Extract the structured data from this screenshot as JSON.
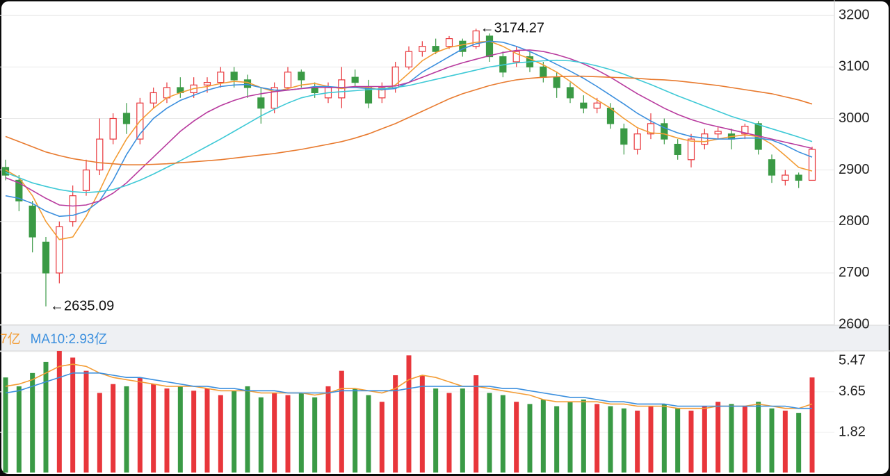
{
  "chart_data": {
    "type": "candlestick",
    "open": [
      2905,
      2880,
      2830,
      2760,
      2700,
      2800,
      2860,
      2900,
      2960,
      3010,
      2960,
      3030,
      3040,
      3060,
      3050,
      3065,
      3070,
      3090,
      3075,
      3040,
      3020,
      3060,
      3090,
      3060,
      3040,
      3040,
      3080,
      3060,
      3040,
      3060,
      3100,
      3130,
      3140,
      3140,
      3150,
      3140,
      3160,
      3120,
      3110,
      3120,
      3100,
      3080,
      3060,
      3030,
      3020,
      3020,
      2980,
      2940,
      2970,
      2990,
      2950,
      2920,
      2950,
      2970,
      2970,
      2970,
      2990,
      2920,
      2880,
      2890,
      2880
    ],
    "high": [
      2920,
      2890,
      2840,
      2770,
      2800,
      2870,
      2920,
      3000,
      3010,
      3030,
      3040,
      3060,
      3070,
      3080,
      3080,
      3080,
      3100,
      3100,
      3085,
      3060,
      3070,
      3100,
      3095,
      3070,
      3070,
      3100,
      3095,
      3075,
      3070,
      3110,
      3140,
      3150,
      3155,
      3160,
      3155,
      3174.27,
      3165,
      3130,
      3140,
      3130,
      3110,
      3090,
      3070,
      3045,
      3040,
      3030,
      2990,
      2980,
      3010,
      3000,
      2960,
      2970,
      2980,
      2985,
      2980,
      2990,
      2995,
      2930,
      2900,
      2895,
      2945
    ],
    "low": [
      2880,
      2820,
      2740,
      2635.09,
      2680,
      2790,
      2850,
      2890,
      2950,
      2970,
      2950,
      3020,
      3030,
      3040,
      3040,
      3050,
      3060,
      3060,
      3040,
      2990,
      3010,
      3055,
      3060,
      3040,
      3030,
      3020,
      3060,
      3020,
      3030,
      3050,
      3095,
      3120,
      3125,
      3135,
      3120,
      3135,
      3110,
      3080,
      3100,
      3090,
      3070,
      3040,
      3030,
      3010,
      3010,
      2980,
      2930,
      2930,
      2960,
      2950,
      2920,
      2905,
      2940,
      2960,
      2940,
      2960,
      2930,
      2875,
      2870,
      2865,
      2880
    ],
    "close": [
      2890,
      2840,
      2770,
      2700,
      2790,
      2850,
      2900,
      2960,
      3000,
      2990,
      3030,
      3050,
      3060,
      3050,
      3065,
      3070,
      3090,
      3075,
      3060,
      3020,
      3060,
      3090,
      3075,
      3050,
      3060,
      3075,
      3070,
      3030,
      3060,
      3100,
      3130,
      3140,
      3130,
      3155,
      3130,
      3170,
      3120,
      3090,
      3130,
      3100,
      3080,
      3060,
      3040,
      3020,
      3030,
      2990,
      2950,
      2970,
      2990,
      2960,
      2930,
      2960,
      2970,
      2975,
      2960,
      2985,
      2940,
      2890,
      2890,
      2880,
      2940
    ],
    "up_color": "#e8363b",
    "down_color": "#3a9a45",
    "ma": [
      {
        "color": "#f39c34",
        "values": [
          2900,
          2885,
          2850,
          2800,
          2765,
          2770,
          2810,
          2860,
          2915,
          2960,
          2995,
          3020,
          3040,
          3050,
          3058,
          3062,
          3068,
          3072,
          3070,
          3060,
          3052,
          3058,
          3065,
          3068,
          3062,
          3058,
          3062,
          3060,
          3055,
          3065,
          3088,
          3112,
          3128,
          3138,
          3143,
          3148,
          3150,
          3140,
          3126,
          3116,
          3104,
          3090,
          3072,
          3052,
          3036,
          3020,
          3000,
          2982,
          2972,
          2970,
          2962,
          2956,
          2955,
          2960,
          2965,
          2968,
          2965,
          2950,
          2928,
          2905,
          2898
        ]
      },
      {
        "color": "#3b8fde",
        "values": [
          2850,
          2845,
          2835,
          2820,
          2810,
          2812,
          2820,
          2840,
          2880,
          2930,
          2970,
          3000,
          3020,
          3035,
          3045,
          3055,
          3062,
          3065,
          3066,
          3060,
          3055,
          3055,
          3058,
          3062,
          3062,
          3060,
          3060,
          3058,
          3056,
          3058,
          3070,
          3090,
          3105,
          3120,
          3135,
          3145,
          3150,
          3148,
          3140,
          3130,
          3118,
          3105,
          3092,
          3078,
          3062,
          3045,
          3028,
          3010,
          2995,
          2982,
          2972,
          2965,
          2962,
          2960,
          2960,
          2962,
          2962,
          2958,
          2948,
          2935,
          2925
        ]
      },
      {
        "color": "#b83a9e",
        "values": [
          2885,
          2875,
          2860,
          2845,
          2832,
          2830,
          2832,
          2840,
          2855,
          2875,
          2900,
          2925,
          2950,
          2975,
          2995,
          3012,
          3025,
          3035,
          3043,
          3048,
          3052,
          3055,
          3058,
          3060,
          3060,
          3060,
          3062,
          3062,
          3062,
          3063,
          3070,
          3080,
          3090,
          3100,
          3108,
          3115,
          3122,
          3128,
          3132,
          3133,
          3130,
          3124,
          3116,
          3106,
          3094,
          3080,
          3064,
          3048,
          3034,
          3020,
          3008,
          2998,
          2990,
          2984,
          2978,
          2972,
          2966,
          2960,
          2954,
          2948,
          2942
        ]
      },
      {
        "color": "#3ec9d6",
        "values": [
          2895,
          2885,
          2875,
          2868,
          2862,
          2858,
          2856,
          2858,
          2862,
          2870,
          2880,
          2892,
          2905,
          2918,
          2932,
          2946,
          2960,
          2975,
          2990,
          3005,
          3018,
          3030,
          3040,
          3046,
          3050,
          3052,
          3054,
          3056,
          3058,
          3060,
          3064,
          3070,
          3076,
          3082,
          3088,
          3094,
          3100,
          3104,
          3108,
          3110,
          3112,
          3113,
          3112,
          3108,
          3102,
          3095,
          3086,
          3076,
          3066,
          3055,
          3044,
          3034,
          3024,
          3014,
          3004,
          2996,
          2988,
          2980,
          2972,
          2964,
          2955
        ]
      },
      {
        "color": "#e87a2e",
        "values": [
          2965,
          2955,
          2945,
          2935,
          2928,
          2922,
          2918,
          2914,
          2912,
          2910,
          2910,
          2911,
          2912,
          2914,
          2916,
          2918,
          2920,
          2923,
          2926,
          2929,
          2932,
          2936,
          2940,
          2945,
          2950,
          2955,
          2962,
          2970,
          2980,
          2990,
          3002,
          3014,
          3026,
          3038,
          3048,
          3056,
          3064,
          3070,
          3075,
          3078,
          3080,
          3081,
          3082,
          3082,
          3081,
          3080,
          3079,
          3078,
          3076,
          3075,
          3073,
          3070,
          3067,
          3064,
          3060,
          3056,
          3052,
          3048,
          3042,
          3036,
          3028
        ]
      }
    ],
    "ylim": [
      2600,
      3230
    ],
    "yticks": [
      2600,
      2700,
      2800,
      2900,
      3000,
      3100,
      3200
    ],
    "grid": true,
    "annotations": {
      "max": "←3174.27",
      "min": "←2635.09"
    },
    "volume": {
      "values": [
        4.3,
        3.9,
        4.5,
        5.0,
        5.5,
        5.2,
        4.6,
        3.6,
        4.0,
        3.9,
        4.3,
        4.0,
        3.8,
        3.9,
        3.7,
        3.8,
        3.5,
        3.7,
        3.9,
        3.4,
        3.6,
        3.5,
        3.6,
        3.4,
        3.9,
        4.6,
        3.8,
        3.5,
        3.2,
        4.4,
        5.3,
        4.4,
        3.8,
        3.6,
        3.8,
        4.4,
        3.6,
        3.5,
        3.2,
        3.1,
        3.3,
        3.0,
        3.2,
        3.3,
        3.1,
        3.0,
        2.9,
        2.8,
        3.0,
        3.1,
        2.9,
        2.8,
        3.0,
        3.2,
        3.1,
        3.0,
        3.2,
        2.9,
        2.8,
        2.7,
        4.3
      ],
      "ma": [
        {
          "color": "#f39c34",
          "values": [
            3.9,
            4.0,
            4.2,
            4.5,
            4.8,
            4.9,
            4.8,
            4.5,
            4.3,
            4.2,
            4.1,
            4.0,
            3.9,
            3.9,
            3.9,
            3.8,
            3.7,
            3.7,
            3.7,
            3.6,
            3.6,
            3.6,
            3.6,
            3.5,
            3.6,
            3.8,
            3.8,
            3.7,
            3.6,
            3.8,
            4.2,
            4.4,
            4.3,
            4.1,
            3.9,
            3.9,
            3.8,
            3.7,
            3.6,
            3.5,
            3.3,
            3.2,
            3.2,
            3.2,
            3.2,
            3.1,
            3.1,
            3.0,
            3.0,
            3.0,
            2.9,
            2.9,
            2.9,
            3.0,
            3.0,
            3.0,
            3.1,
            3.0,
            2.9,
            2.9,
            3.1
          ]
        },
        {
          "color": "#3b8fde",
          "values": [
            3.6,
            3.7,
            3.9,
            4.1,
            4.3,
            4.5,
            4.5,
            4.5,
            4.4,
            4.3,
            4.3,
            4.2,
            4.1,
            4.0,
            3.9,
            3.9,
            3.8,
            3.8,
            3.7,
            3.7,
            3.7,
            3.6,
            3.6,
            3.6,
            3.6,
            3.7,
            3.7,
            3.7,
            3.7,
            3.7,
            3.8,
            3.9,
            3.9,
            3.9,
            3.9,
            3.9,
            3.9,
            3.8,
            3.8,
            3.7,
            3.6,
            3.5,
            3.4,
            3.4,
            3.3,
            3.2,
            3.2,
            3.1,
            3.1,
            3.1,
            3.0,
            3.0,
            3.0,
            3.0,
            3.0,
            3.0,
            3.0,
            3.0,
            3.0,
            2.9,
            2.9
          ]
        }
      ],
      "ylim": [
        0,
        5.5
      ],
      "yticks": [
        1.82,
        3.65,
        5.47
      ],
      "legend": [
        {
          "text": "7亿",
          "color": "#f39c34"
        },
        {
          "text": "MA10:2.93亿",
          "color": "#3b8fde"
        }
      ]
    }
  }
}
